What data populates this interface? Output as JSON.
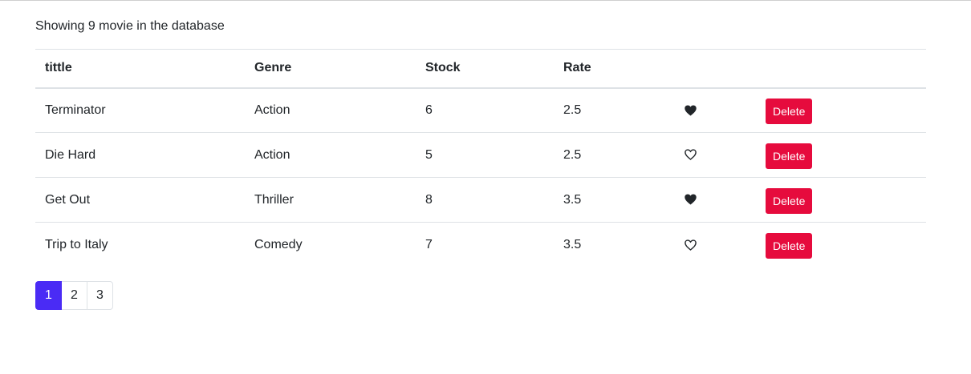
{
  "summary": "Showing 9 movie in the database",
  "table": {
    "headers": [
      "tittle",
      "Genre",
      "Stock",
      "Rate",
      "",
      ""
    ],
    "rows": [
      {
        "title": "Terminator",
        "genre": "Action",
        "stock": "6",
        "rate": "2.5",
        "liked": true,
        "delete_label": "Delete"
      },
      {
        "title": "Die Hard",
        "genre": "Action",
        "stock": "5",
        "rate": "2.5",
        "liked": false,
        "delete_label": "Delete"
      },
      {
        "title": "Get Out",
        "genre": "Thriller",
        "stock": "8",
        "rate": "3.5",
        "liked": true,
        "delete_label": "Delete"
      },
      {
        "title": "Trip to Italy",
        "genre": "Comedy",
        "stock": "7",
        "rate": "3.5",
        "liked": false,
        "delete_label": "Delete"
      }
    ]
  },
  "pagination": {
    "pages": [
      "1",
      "2",
      "3"
    ],
    "current": "1"
  },
  "colors": {
    "delete": "#e60b3d",
    "active_page": "#4a2bf5",
    "text": "#212529",
    "border": "#dee2e6"
  },
  "icons": {
    "liked": "heart-filled-icon",
    "not_liked": "heart-outline-icon"
  }
}
